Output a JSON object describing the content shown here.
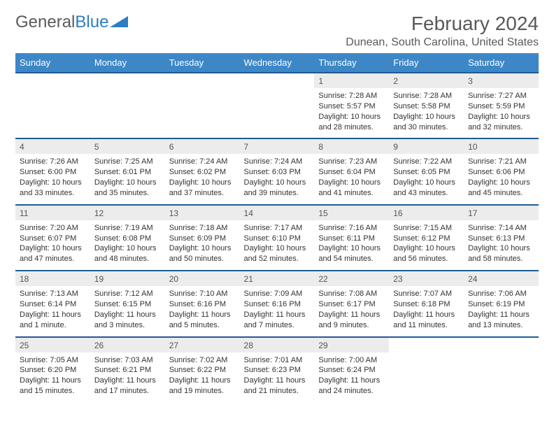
{
  "logo": {
    "text1": "General",
    "text2": "Blue"
  },
  "header": {
    "title": "February 2024",
    "subtitle": "Dunean, South Carolina, United States"
  },
  "colors": {
    "header_bg": "#3d87c7",
    "header_text": "#ffffff",
    "row_divider": "#1f5c94",
    "daynum_bg": "#ececec",
    "logo_blue": "#2d7dc4",
    "text_gray": "#595959"
  },
  "day_names": [
    "Sunday",
    "Monday",
    "Tuesday",
    "Wednesday",
    "Thursday",
    "Friday",
    "Saturday"
  ],
  "weeks": [
    [
      {
        "n": "",
        "sr": "",
        "ss": "",
        "dl": ""
      },
      {
        "n": "",
        "sr": "",
        "ss": "",
        "dl": ""
      },
      {
        "n": "",
        "sr": "",
        "ss": "",
        "dl": ""
      },
      {
        "n": "",
        "sr": "",
        "ss": "",
        "dl": ""
      },
      {
        "n": "1",
        "sr": "Sunrise: 7:28 AM",
        "ss": "Sunset: 5:57 PM",
        "dl": "Daylight: 10 hours and 28 minutes."
      },
      {
        "n": "2",
        "sr": "Sunrise: 7:28 AM",
        "ss": "Sunset: 5:58 PM",
        "dl": "Daylight: 10 hours and 30 minutes."
      },
      {
        "n": "3",
        "sr": "Sunrise: 7:27 AM",
        "ss": "Sunset: 5:59 PM",
        "dl": "Daylight: 10 hours and 32 minutes."
      }
    ],
    [
      {
        "n": "4",
        "sr": "Sunrise: 7:26 AM",
        "ss": "Sunset: 6:00 PM",
        "dl": "Daylight: 10 hours and 33 minutes."
      },
      {
        "n": "5",
        "sr": "Sunrise: 7:25 AM",
        "ss": "Sunset: 6:01 PM",
        "dl": "Daylight: 10 hours and 35 minutes."
      },
      {
        "n": "6",
        "sr": "Sunrise: 7:24 AM",
        "ss": "Sunset: 6:02 PM",
        "dl": "Daylight: 10 hours and 37 minutes."
      },
      {
        "n": "7",
        "sr": "Sunrise: 7:24 AM",
        "ss": "Sunset: 6:03 PM",
        "dl": "Daylight: 10 hours and 39 minutes."
      },
      {
        "n": "8",
        "sr": "Sunrise: 7:23 AM",
        "ss": "Sunset: 6:04 PM",
        "dl": "Daylight: 10 hours and 41 minutes."
      },
      {
        "n": "9",
        "sr": "Sunrise: 7:22 AM",
        "ss": "Sunset: 6:05 PM",
        "dl": "Daylight: 10 hours and 43 minutes."
      },
      {
        "n": "10",
        "sr": "Sunrise: 7:21 AM",
        "ss": "Sunset: 6:06 PM",
        "dl": "Daylight: 10 hours and 45 minutes."
      }
    ],
    [
      {
        "n": "11",
        "sr": "Sunrise: 7:20 AM",
        "ss": "Sunset: 6:07 PM",
        "dl": "Daylight: 10 hours and 47 minutes."
      },
      {
        "n": "12",
        "sr": "Sunrise: 7:19 AM",
        "ss": "Sunset: 6:08 PM",
        "dl": "Daylight: 10 hours and 48 minutes."
      },
      {
        "n": "13",
        "sr": "Sunrise: 7:18 AM",
        "ss": "Sunset: 6:09 PM",
        "dl": "Daylight: 10 hours and 50 minutes."
      },
      {
        "n": "14",
        "sr": "Sunrise: 7:17 AM",
        "ss": "Sunset: 6:10 PM",
        "dl": "Daylight: 10 hours and 52 minutes."
      },
      {
        "n": "15",
        "sr": "Sunrise: 7:16 AM",
        "ss": "Sunset: 6:11 PM",
        "dl": "Daylight: 10 hours and 54 minutes."
      },
      {
        "n": "16",
        "sr": "Sunrise: 7:15 AM",
        "ss": "Sunset: 6:12 PM",
        "dl": "Daylight: 10 hours and 56 minutes."
      },
      {
        "n": "17",
        "sr": "Sunrise: 7:14 AM",
        "ss": "Sunset: 6:13 PM",
        "dl": "Daylight: 10 hours and 58 minutes."
      }
    ],
    [
      {
        "n": "18",
        "sr": "Sunrise: 7:13 AM",
        "ss": "Sunset: 6:14 PM",
        "dl": "Daylight: 11 hours and 1 minute."
      },
      {
        "n": "19",
        "sr": "Sunrise: 7:12 AM",
        "ss": "Sunset: 6:15 PM",
        "dl": "Daylight: 11 hours and 3 minutes."
      },
      {
        "n": "20",
        "sr": "Sunrise: 7:10 AM",
        "ss": "Sunset: 6:16 PM",
        "dl": "Daylight: 11 hours and 5 minutes."
      },
      {
        "n": "21",
        "sr": "Sunrise: 7:09 AM",
        "ss": "Sunset: 6:16 PM",
        "dl": "Daylight: 11 hours and 7 minutes."
      },
      {
        "n": "22",
        "sr": "Sunrise: 7:08 AM",
        "ss": "Sunset: 6:17 PM",
        "dl": "Daylight: 11 hours and 9 minutes."
      },
      {
        "n": "23",
        "sr": "Sunrise: 7:07 AM",
        "ss": "Sunset: 6:18 PM",
        "dl": "Daylight: 11 hours and 11 minutes."
      },
      {
        "n": "24",
        "sr": "Sunrise: 7:06 AM",
        "ss": "Sunset: 6:19 PM",
        "dl": "Daylight: 11 hours and 13 minutes."
      }
    ],
    [
      {
        "n": "25",
        "sr": "Sunrise: 7:05 AM",
        "ss": "Sunset: 6:20 PM",
        "dl": "Daylight: 11 hours and 15 minutes."
      },
      {
        "n": "26",
        "sr": "Sunrise: 7:03 AM",
        "ss": "Sunset: 6:21 PM",
        "dl": "Daylight: 11 hours and 17 minutes."
      },
      {
        "n": "27",
        "sr": "Sunrise: 7:02 AM",
        "ss": "Sunset: 6:22 PM",
        "dl": "Daylight: 11 hours and 19 minutes."
      },
      {
        "n": "28",
        "sr": "Sunrise: 7:01 AM",
        "ss": "Sunset: 6:23 PM",
        "dl": "Daylight: 11 hours and 21 minutes."
      },
      {
        "n": "29",
        "sr": "Sunrise: 7:00 AM",
        "ss": "Sunset: 6:24 PM",
        "dl": "Daylight: 11 hours and 24 minutes."
      },
      {
        "n": "",
        "sr": "",
        "ss": "",
        "dl": ""
      },
      {
        "n": "",
        "sr": "",
        "ss": "",
        "dl": ""
      }
    ]
  ]
}
